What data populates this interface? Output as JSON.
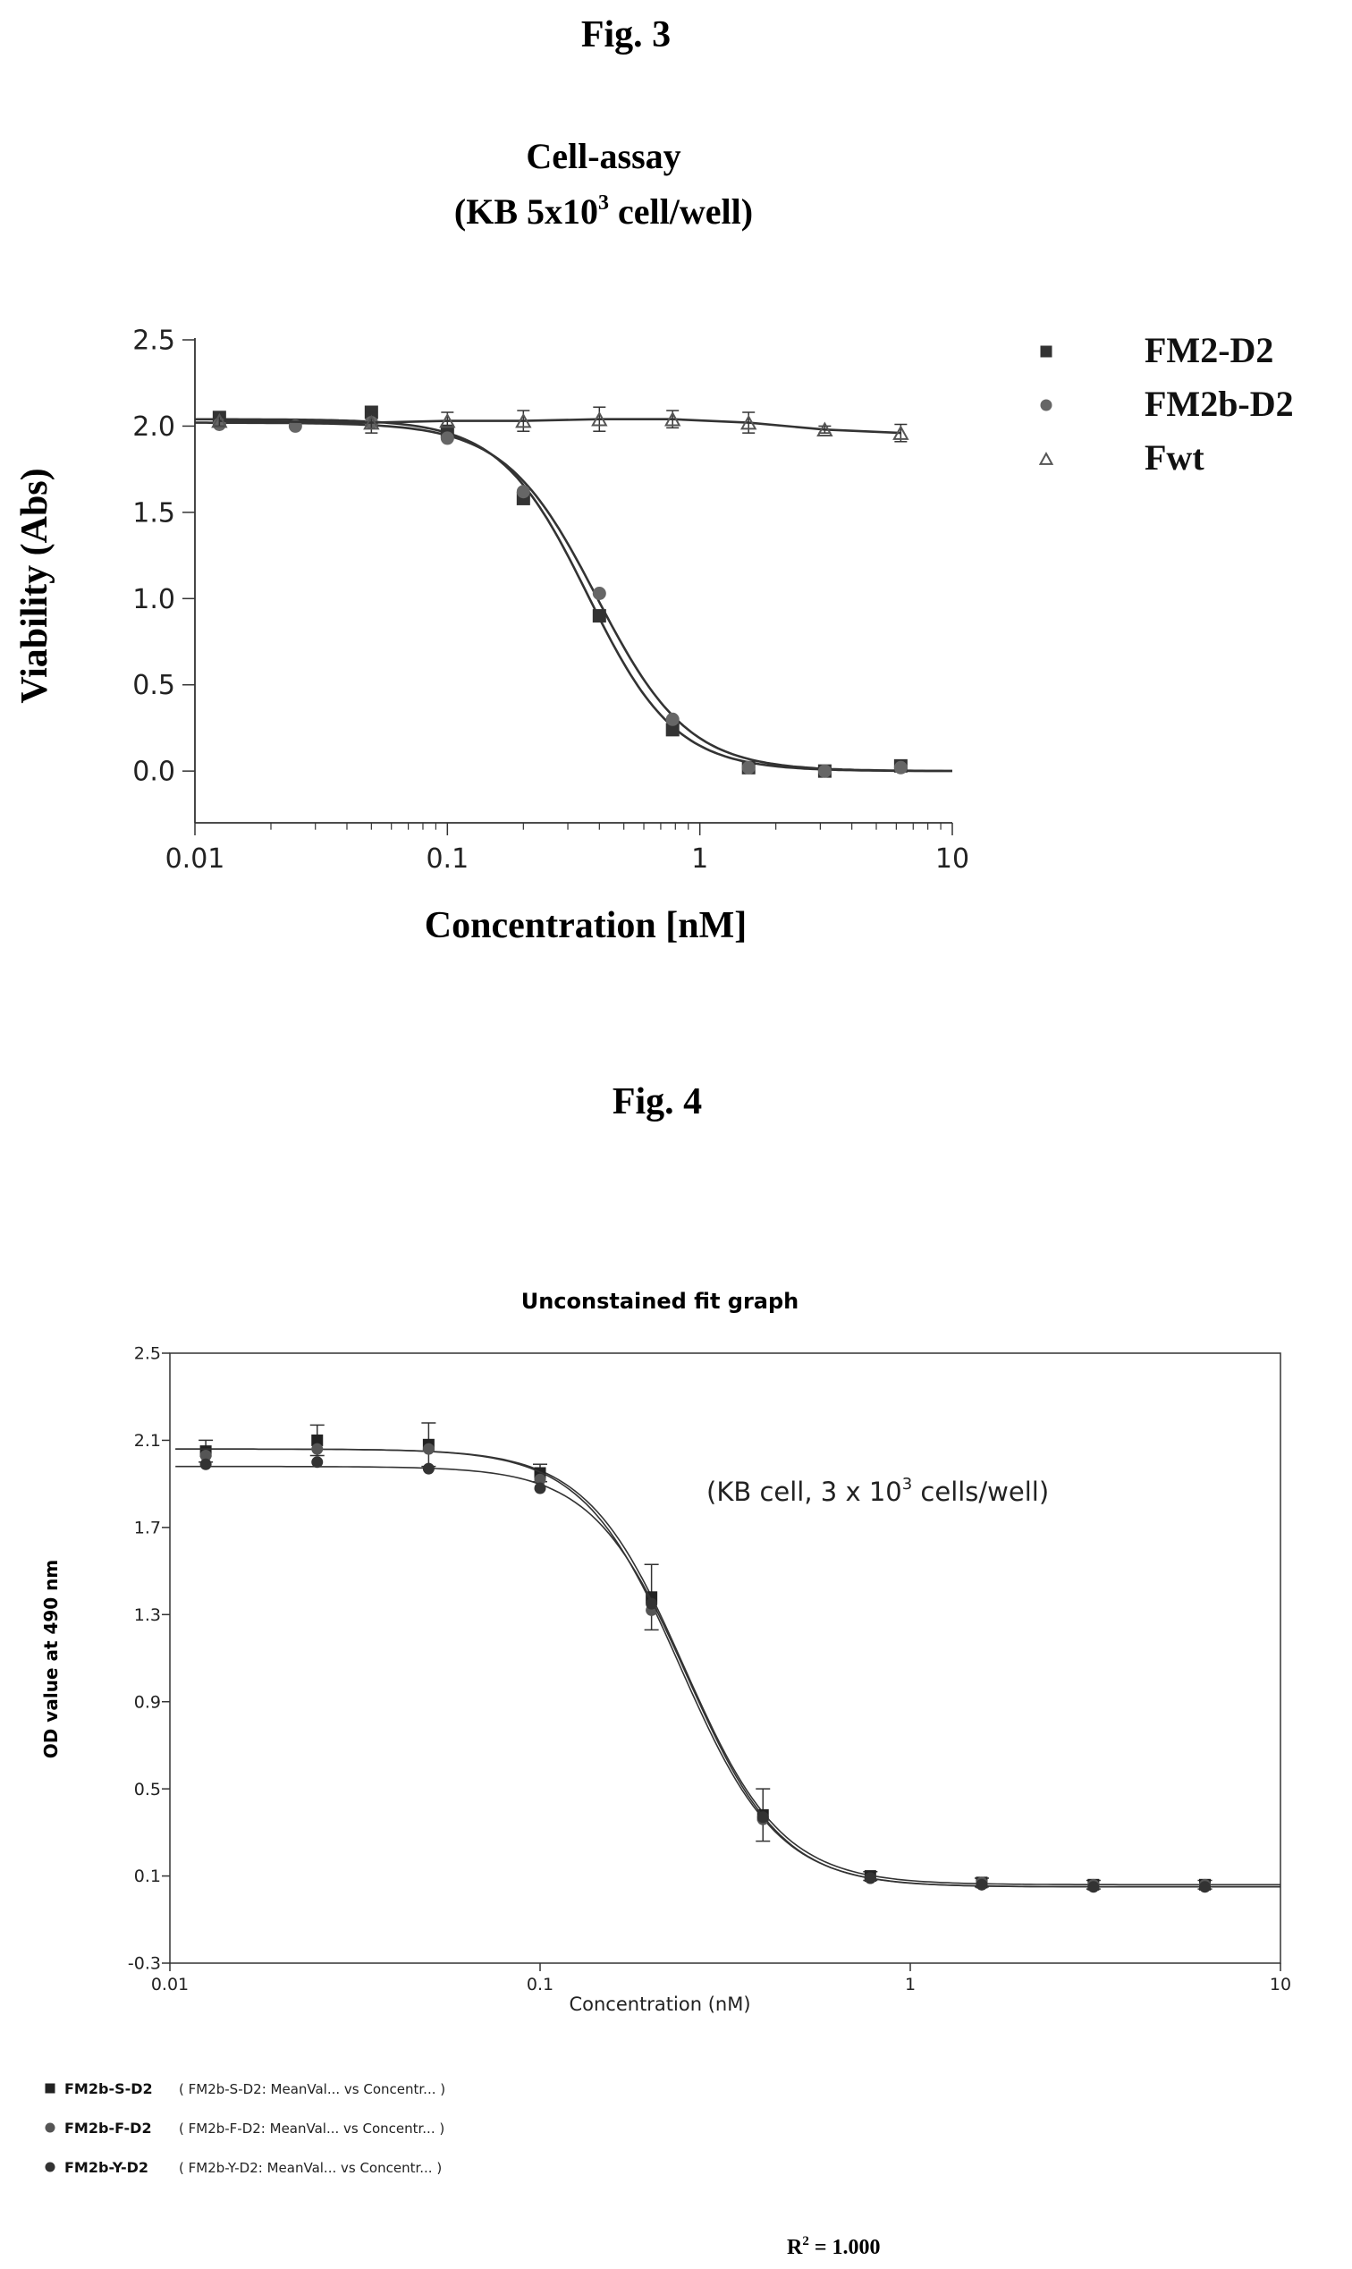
{
  "figures": [
    {
      "label": "Fig. 3"
    },
    {
      "label": "Fig. 4"
    }
  ],
  "chart_data": [
    {
      "type": "scatter",
      "title": "Cell-assay",
      "subtitle": "(KB 5x10",
      "subtitle_sup": "3",
      "subtitle_tail": " cell/well)",
      "xlabel": "Concentration [nM]",
      "ylabel": "Viability (Abs)",
      "xscale": "log",
      "xlim": [
        0.01,
        10
      ],
      "ylim": [
        -0.3,
        2.5
      ],
      "xticks": [
        0.01,
        0.1,
        1,
        10
      ],
      "xtick_labels": [
        "0.01",
        "0.1",
        "1",
        "10"
      ],
      "yticks": [
        0.0,
        0.5,
        1.0,
        1.5,
        2.0,
        2.5
      ],
      "ytick_labels": [
        "0.0",
        "0.5",
        "1.0",
        "1.5",
        "2.0",
        "2.5"
      ],
      "grid": false,
      "legend": "right",
      "series": [
        {
          "name": "FM2-D2",
          "marker": "square",
          "color": "#333333",
          "x": [
            0.0125,
            0.05,
            0.1,
            0.2,
            0.4,
            0.78,
            1.56,
            3.125,
            6.25
          ],
          "y": [
            2.05,
            2.08,
            1.97,
            1.58,
            0.9,
            0.24,
            0.02,
            0.0,
            0.03
          ],
          "fit": {
            "top": 2.04,
            "bottom": 0.0,
            "ec50": 0.36,
            "hill": 2.5
          }
        },
        {
          "name": "FM2b-D2",
          "marker": "circle",
          "color": "#666666",
          "x": [
            0.0125,
            0.025,
            0.05,
            0.1,
            0.2,
            0.4,
            0.78,
            1.56,
            3.125,
            6.25
          ],
          "y": [
            2.01,
            2.0,
            2.02,
            1.93,
            1.62,
            1.03,
            0.3,
            0.02,
            0.0,
            0.02
          ],
          "fit": {
            "top": 2.02,
            "bottom": 0.0,
            "ec50": 0.39,
            "hill": 2.4
          }
        },
        {
          "name": "Fwt",
          "marker": "triangle",
          "color": "#555555",
          "x": [
            0.0125,
            0.05,
            0.1,
            0.2,
            0.4,
            0.78,
            1.56,
            3.125,
            6.25
          ],
          "y": [
            2.03,
            2.02,
            2.03,
            2.03,
            2.04,
            2.04,
            2.02,
            1.98,
            1.96
          ],
          "err": [
            0.03,
            0.06,
            0.05,
            0.06,
            0.07,
            0.05,
            0.06,
            0.02,
            0.05
          ]
        }
      ]
    },
    {
      "type": "scatter",
      "title": "Unconstained fit graph",
      "annotation": "(KB cell, 3 x 10",
      "annotation_sup": "3",
      "annotation_tail": " cells/well)",
      "xlabel": "Concentration (nM)",
      "ylabel": "OD value at 490 nm",
      "xscale": "log",
      "xlim": [
        0.01,
        10
      ],
      "ylim": [
        -0.3,
        2.5
      ],
      "xticks": [
        0.01,
        0.1,
        1,
        10
      ],
      "xtick_labels": [
        "0.01",
        "0.1",
        "1",
        "10"
      ],
      "yticks": [
        -0.3,
        0.1,
        0.5,
        0.9,
        1.3,
        1.7,
        2.1,
        2.5
      ],
      "ytick_labels": [
        "-0.3",
        "0.1",
        "0.5",
        "0.9",
        "1.3",
        "1.7",
        "2.1",
        "2.5"
      ],
      "grid": false,
      "legend": "bottom-left",
      "series": [
        {
          "name": "FM2b-S-D2",
          "marker": "square",
          "color": "#222222",
          "legend_detail": "( FM2b-S-D2: MeanVal...   vs Concentr...  )",
          "x": [
            0.0125,
            0.025,
            0.05,
            0.1,
            0.2,
            0.4,
            0.78,
            1.56,
            3.125,
            6.25
          ],
          "y": [
            2.05,
            2.1,
            2.08,
            1.95,
            1.38,
            0.38,
            0.1,
            0.07,
            0.06,
            0.06
          ],
          "err": [
            0.05,
            0.07,
            0.1,
            0.04,
            0.15,
            0.12,
            0.02,
            0.02,
            0.02,
            0.02
          ],
          "fit": {
            "top": 2.06,
            "bottom": 0.06,
            "ec50": 0.245,
            "hill": 3.3
          }
        },
        {
          "name": "FM2b-F-D2",
          "marker": "circle",
          "color": "#555555",
          "legend_detail": "( FM2b-F-D2: MeanVal...   vs Concentr...  )",
          "x": [
            0.0125,
            0.025,
            0.05,
            0.1,
            0.2,
            0.4,
            0.78,
            1.56,
            3.125,
            6.25
          ],
          "y": [
            2.03,
            2.06,
            2.06,
            1.92,
            1.32,
            0.36,
            0.09,
            0.07,
            0.06,
            0.06
          ],
          "fit": {
            "top": 2.06,
            "bottom": 0.05,
            "ec50": 0.24,
            "hill": 3.3
          }
        },
        {
          "name": "FM2b-Y-D2",
          "marker": "circle",
          "color": "#333333",
          "legend_detail": "( FM2b-Y-D2: MeanVal...   vs Concentr...  )",
          "x": [
            0.0125,
            0.025,
            0.05,
            0.1,
            0.2,
            0.4,
            0.78,
            1.56,
            3.125,
            6.25
          ],
          "y": [
            1.99,
            2.0,
            1.97,
            1.88,
            1.35,
            0.37,
            0.09,
            0.06,
            0.05,
            0.05
          ],
          "fit": {
            "top": 1.98,
            "bottom": 0.05,
            "ec50": 0.25,
            "hill": 3.4
          }
        }
      ]
    }
  ],
  "footer": {
    "r2_label": "R",
    "r2_sup": "2",
    "r2_value": " = 1.000"
  }
}
